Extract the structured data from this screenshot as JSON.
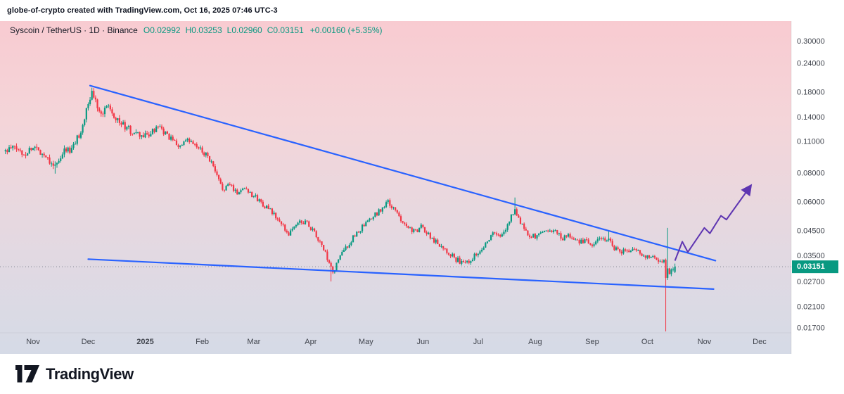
{
  "header": {
    "attribution": "globe-of-crypto created with TradingView.com, Oct 16, 2025 07:46 UTC-3"
  },
  "legend": {
    "title": "Syscoin / TetherUS · 1D · Binance",
    "o_label": "O",
    "o": "0.02992",
    "h_label": "H",
    "h": "0.03253",
    "l_label": "L",
    "l": "0.02960",
    "c_label": "C",
    "c": "0.03151",
    "change": "+0.00160 (+5.35%)"
  },
  "footer": {
    "brand": "TradingView"
  },
  "price_axis": {
    "ticks": [
      {
        "label": "0.30000",
        "value": 0.3
      },
      {
        "label": "0.24000",
        "value": 0.24
      },
      {
        "label": "0.18000",
        "value": 0.18
      },
      {
        "label": "0.14000",
        "value": 0.14
      },
      {
        "label": "0.11000",
        "value": 0.11
      },
      {
        "label": "0.08000",
        "value": 0.08
      },
      {
        "label": "0.06000",
        "value": 0.06
      },
      {
        "label": "0.04500",
        "value": 0.045
      },
      {
        "label": "0.03500",
        "value": 0.035
      },
      {
        "label": "0.02700",
        "value": 0.027
      },
      {
        "label": "0.02100",
        "value": 0.021
      },
      {
        "label": "0.01700",
        "value": 0.017
      }
    ],
    "current_price": 0.03151,
    "current_price_label": "0.03151"
  },
  "time_axis": {
    "labels": [
      {
        "text": "Nov",
        "t": 0
      },
      {
        "text": "Dec",
        "t": 30
      },
      {
        "text": "2025",
        "t": 61,
        "bold": true
      },
      {
        "text": "Feb",
        "t": 92
      },
      {
        "text": "Mar",
        "t": 120
      },
      {
        "text": "Apr",
        "t": 151
      },
      {
        "text": "May",
        "t": 181
      },
      {
        "text": "Jun",
        "t": 212
      },
      {
        "text": "Jul",
        "t": 242
      },
      {
        "text": "Aug",
        "t": 273
      },
      {
        "text": "Sep",
        "t": 304
      },
      {
        "text": "Oct",
        "t": 334
      },
      {
        "text": "Nov",
        "t": 365
      },
      {
        "text": "Dec",
        "t": 395
      }
    ]
  },
  "chart_data": {
    "type": "candlestick",
    "title": "Syscoin / TetherUS 1D Binance",
    "scale": "log",
    "y_range": [
      0.0155,
      0.33
    ],
    "x_range_days": [
      -15,
      349
    ],
    "x_epoch": "days since 2024-11-01",
    "last_candle": {
      "open": 0.02992,
      "high": 0.03253,
      "low": 0.0296,
      "close": 0.03151,
      "change": "+0.00160 (+5.35%)"
    },
    "price_path": [
      [
        -15,
        0.1
      ],
      [
        -10,
        0.104
      ],
      [
        -5,
        0.097
      ],
      [
        0,
        0.105
      ],
      [
        4,
        0.1
      ],
      [
        8,
        0.094
      ],
      [
        12,
        0.086
      ],
      [
        15,
        0.092
      ],
      [
        18,
        0.104
      ],
      [
        20,
        0.098
      ],
      [
        22,
        0.106
      ],
      [
        25,
        0.118
      ],
      [
        28,
        0.138
      ],
      [
        30,
        0.16
      ],
      [
        32,
        0.18
      ],
      [
        34,
        0.166
      ],
      [
        36,
        0.154
      ],
      [
        38,
        0.143
      ],
      [
        40,
        0.162
      ],
      [
        42,
        0.155
      ],
      [
        45,
        0.14
      ],
      [
        48,
        0.132
      ],
      [
        52,
        0.124
      ],
      [
        56,
        0.118
      ],
      [
        61,
        0.116
      ],
      [
        65,
        0.122
      ],
      [
        68,
        0.127
      ],
      [
        72,
        0.119
      ],
      [
        76,
        0.111
      ],
      [
        80,
        0.105
      ],
      [
        84,
        0.111
      ],
      [
        88,
        0.106
      ],
      [
        92,
        0.1
      ],
      [
        95,
        0.096
      ],
      [
        98,
        0.085
      ],
      [
        101,
        0.074
      ],
      [
        104,
        0.068
      ],
      [
        107,
        0.072
      ],
      [
        111,
        0.066
      ],
      [
        115,
        0.07
      ],
      [
        119,
        0.065
      ],
      [
        123,
        0.061
      ],
      [
        127,
        0.057
      ],
      [
        131,
        0.053
      ],
      [
        135,
        0.048
      ],
      [
        139,
        0.044
      ],
      [
        142,
        0.047
      ],
      [
        146,
        0.05
      ],
      [
        150,
        0.048
      ],
      [
        153,
        0.044
      ],
      [
        156,
        0.04
      ],
      [
        159,
        0.036
      ],
      [
        161,
        0.032
      ],
      [
        163,
        0.0295
      ],
      [
        166,
        0.034
      ],
      [
        170,
        0.038
      ],
      [
        174,
        0.042
      ],
      [
        178,
        0.046
      ],
      [
        182,
        0.049
      ],
      [
        186,
        0.053
      ],
      [
        190,
        0.057
      ],
      [
        193,
        0.06
      ],
      [
        196,
        0.056
      ],
      [
        200,
        0.051
      ],
      [
        204,
        0.047
      ],
      [
        208,
        0.0445
      ],
      [
        211,
        0.047
      ],
      [
        214,
        0.0445
      ],
      [
        218,
        0.041
      ],
      [
        222,
        0.039
      ],
      [
        226,
        0.0365
      ],
      [
        230,
        0.034
      ],
      [
        234,
        0.0325
      ],
      [
        238,
        0.034
      ],
      [
        241,
        0.036
      ],
      [
        244,
        0.038
      ],
      [
        248,
        0.042
      ],
      [
        251,
        0.0445
      ],
      [
        254,
        0.042
      ],
      [
        257,
        0.046
      ],
      [
        260,
        0.052
      ],
      [
        262,
        0.057
      ],
      [
        264,
        0.051
      ],
      [
        267,
        0.046
      ],
      [
        270,
        0.0435
      ],
      [
        273,
        0.0425
      ],
      [
        276,
        0.044
      ],
      [
        280,
        0.046
      ],
      [
        284,
        0.0445
      ],
      [
        288,
        0.042
      ],
      [
        292,
        0.043
      ],
      [
        296,
        0.0405
      ],
      [
        300,
        0.041
      ],
      [
        303,
        0.0395
      ],
      [
        306,
        0.04
      ],
      [
        310,
        0.042
      ],
      [
        313,
        0.0415
      ],
      [
        316,
        0.038
      ],
      [
        320,
        0.037
      ],
      [
        324,
        0.0365
      ],
      [
        328,
        0.0375
      ],
      [
        332,
        0.035
      ],
      [
        336,
        0.035
      ],
      [
        340,
        0.0335
      ],
      [
        343,
        0.0332
      ],
      [
        344,
        0.0285
      ],
      [
        346,
        0.03
      ],
      [
        348,
        0.031
      ],
      [
        349,
        0.0315
      ]
    ],
    "candle_overrides": [
      {
        "t": 12,
        "low": 0.08
      },
      {
        "t": 32,
        "high": 0.189
      },
      {
        "t": 162,
        "low": 0.0272
      },
      {
        "t": 262,
        "high": 0.063
      },
      {
        "t": 313,
        "high": 0.0455
      },
      {
        "t": 344,
        "open": 0.0338,
        "close": 0.0282,
        "high": 0.0342,
        "low": 0.0165
      },
      {
        "t": 345,
        "open": 0.0282,
        "close": 0.031,
        "high": 0.0465,
        "low": 0.0276
      },
      {
        "t": 349,
        "open": 0.02992,
        "high": 0.03253,
        "low": 0.0296,
        "close": 0.03151
      }
    ],
    "trendlines": [
      {
        "name": "upper-resistance",
        "from": [
          31,
          0.193
        ],
        "to": [
          371,
          0.0335
        ]
      },
      {
        "name": "lower-support",
        "from": [
          30,
          0.034
        ],
        "to": [
          370,
          0.0252
        ]
      }
    ],
    "projection_arrow": [
      [
        349,
        0.0335
      ],
      [
        353,
        0.0405
      ],
      [
        356,
        0.0365
      ],
      [
        365,
        0.0465
      ],
      [
        368,
        0.044
      ],
      [
        374,
        0.0525
      ],
      [
        377,
        0.0505
      ],
      [
        390,
        0.0705
      ]
    ],
    "colors": {
      "up": "#089981",
      "down": "#f23645",
      "trendline": "#2962ff",
      "arrow": "#5e35b1",
      "badge": "#089981",
      "price_line": "#757a87",
      "axis_text": "#40444d",
      "bg_top": "#f8cbd1",
      "bg_upper_mid": "#f4d5d9",
      "bg_lower_mid": "#e2d9e2",
      "bg_bottom": "#d5dae6"
    }
  }
}
